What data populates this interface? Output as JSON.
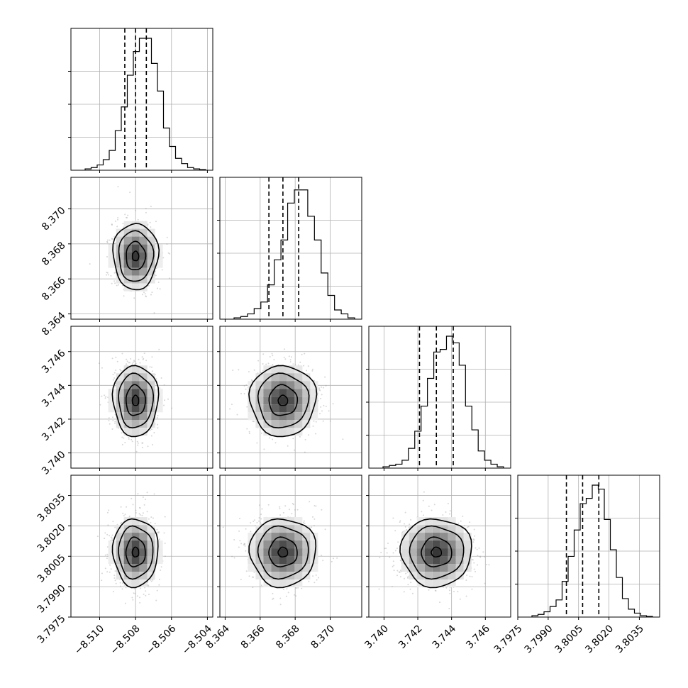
{
  "chart_data": {
    "type": "corner",
    "grid": true,
    "params": [
      {
        "ticks": [
          "−8.510",
          "−8.508",
          "−8.506",
          "−8.504"
        ],
        "tick_values": [
          -8.51,
          -8.508,
          -8.506,
          -8.504
        ],
        "range": [
          -8.5116,
          -8.5037
        ],
        "quantiles": [
          -8.5086,
          -8.508,
          -8.5074
        ],
        "hist": [
          0.01,
          0.02,
          0.04,
          0.08,
          0.15,
          0.3,
          0.48,
          0.72,
          0.9,
          1.0,
          1.0,
          0.81,
          0.6,
          0.32,
          0.18,
          0.09,
          0.05,
          0.02,
          0.01,
          0.005
        ]
      },
      {
        "ticks": [
          "8.364",
          "8.366",
          "8.368",
          "8.370"
        ],
        "tick_values": [
          8.364,
          8.366,
          8.368,
          8.37
        ],
        "range": [
          8.3637,
          8.3718
        ],
        "quantiles": [
          8.3665,
          8.3673,
          8.3682
        ],
        "hist": [
          0.01,
          0.02,
          0.04,
          0.08,
          0.13,
          0.26,
          0.45,
          0.6,
          0.88,
          0.98,
          0.98,
          0.78,
          0.6,
          0.35,
          0.18,
          0.07,
          0.04,
          0.01
        ]
      },
      {
        "ticks": [
          "3.740",
          "3.742",
          "3.744",
          "3.746"
        ],
        "tick_values": [
          3.74,
          3.742,
          3.744,
          3.746
        ],
        "range": [
          3.7391,
          3.7475
        ],
        "quantiles": [
          3.7421,
          3.7431,
          3.7441
        ],
        "hist": [
          0.01,
          0.02,
          0.03,
          0.06,
          0.15,
          0.28,
          0.47,
          0.68,
          0.88,
          0.9,
          1.0,
          0.95,
          0.78,
          0.47,
          0.29,
          0.13,
          0.06,
          0.03,
          0.01
        ]
      },
      {
        "ticks": [
          "3.7975",
          "3.7990",
          "3.8005",
          "3.8020",
          "3.8035"
        ],
        "tick_values": [
          3.7975,
          3.799,
          3.8005,
          3.802,
          3.8035
        ],
        "range": [
          3.7975,
          3.8045
        ],
        "quantiles": [
          3.7999,
          3.8007,
          3.8015
        ],
        "hist": [
          0.01,
          0.02,
          0.04,
          0.08,
          0.13,
          0.27,
          0.46,
          0.66,
          0.86,
          0.9,
          1.0,
          0.97,
          0.74,
          0.51,
          0.3,
          0.14,
          0.06,
          0.03,
          0.01,
          0.005
        ]
      }
    ]
  }
}
